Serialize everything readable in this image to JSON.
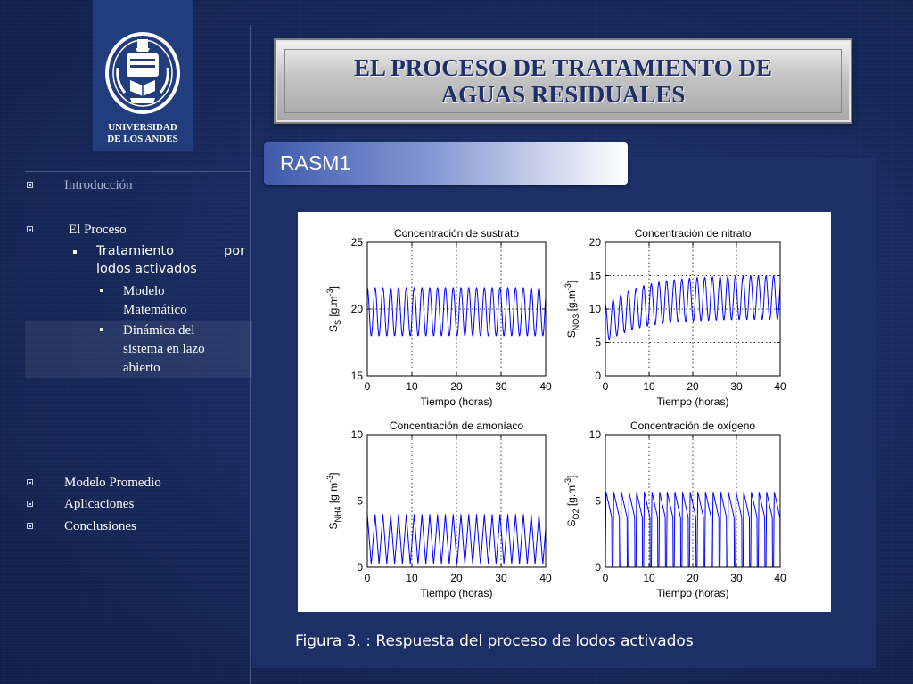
{
  "logo": {
    "line1": "UNIVERSIDAD",
    "line2": "DE LOS ANDES"
  },
  "title": {
    "line1": "EL PROCESO DE TRATAMIENTO DE",
    "line2": "AGUAS RESIDUALES"
  },
  "section": {
    "label": "RASM1"
  },
  "nav": {
    "introduccion": "Introducción",
    "el_proceso": "El Proceso",
    "tratamiento_a": "Tratamiento",
    "tratamiento_b": "por",
    "tratamiento_c": "lodos activados",
    "modelo_a": "Modelo",
    "modelo_b": "Matemático",
    "dinamica_a": "Dinámica del",
    "dinamica_b": "sistema en lazo",
    "dinamica_c": "abierto",
    "modelo_promedio": "Modelo Promedio",
    "aplicaciones": "Aplicaciones",
    "conclusiones": "Conclusiones"
  },
  "caption": "Figura 3. : Respuesta del proceso de lodos activados",
  "colors": {
    "accent": "#1f2f6a",
    "line": "#0000ff"
  },
  "chart_data": [
    {
      "type": "line",
      "title": "Concentración de sustrato",
      "xlabel": "Tiempo (horas)",
      "ylabel": "S_S [g.m^-3]",
      "xlim": [
        0,
        40
      ],
      "ylim": [
        15,
        25
      ],
      "xticks": [
        0,
        10,
        20,
        30,
        40
      ],
      "yticks": [
        15,
        20,
        25
      ],
      "grid": true,
      "series": [
        {
          "period": 1.75,
          "min": 18.0,
          "max": 21.6,
          "start": 18.0
        }
      ]
    },
    {
      "type": "line",
      "title": "Concentración de nitrato",
      "xlabel": "Tiempo (horas)",
      "ylabel": "S_NO3 [g.m^-3]",
      "xlim": [
        0,
        40
      ],
      "ylim": [
        0,
        20
      ],
      "xticks": [
        0,
        10,
        20,
        30,
        40
      ],
      "yticks": [
        0,
        5,
        10,
        15,
        20
      ],
      "grid": true,
      "series": [
        {
          "period": 1.75,
          "min_start": 5.0,
          "min_end": 8.5,
          "max_start": 10.5,
          "max_end": 15.0,
          "start": 9.5
        }
      ]
    },
    {
      "type": "line",
      "title": "Concentración de amoníaco",
      "xlabel": "Tiempo (horas)",
      "ylabel": "S_NH4 [g.m^-3]",
      "xlim": [
        0,
        40
      ],
      "ylim": [
        0,
        10
      ],
      "xticks": [
        0,
        10,
        20,
        30,
        40
      ],
      "yticks": [
        0,
        5,
        10
      ],
      "grid": true,
      "series": [
        {
          "period": 1.75,
          "min": 0.2,
          "max": 4.0,
          "start": 4.0
        }
      ]
    },
    {
      "type": "line",
      "title": "Concentración de oxígeno",
      "xlabel": "Tiempo (horas)",
      "ylabel": "S_O2 [g.m^-3]",
      "xlim": [
        0,
        40
      ],
      "ylim": [
        0,
        10
      ],
      "xticks": [
        0,
        10,
        20,
        30,
        40
      ],
      "yticks": [
        0,
        5,
        10
      ],
      "grid": true,
      "series": [
        {
          "period": 1.75,
          "min": 0.0,
          "max": 5.7,
          "start": 4.5
        }
      ]
    }
  ]
}
